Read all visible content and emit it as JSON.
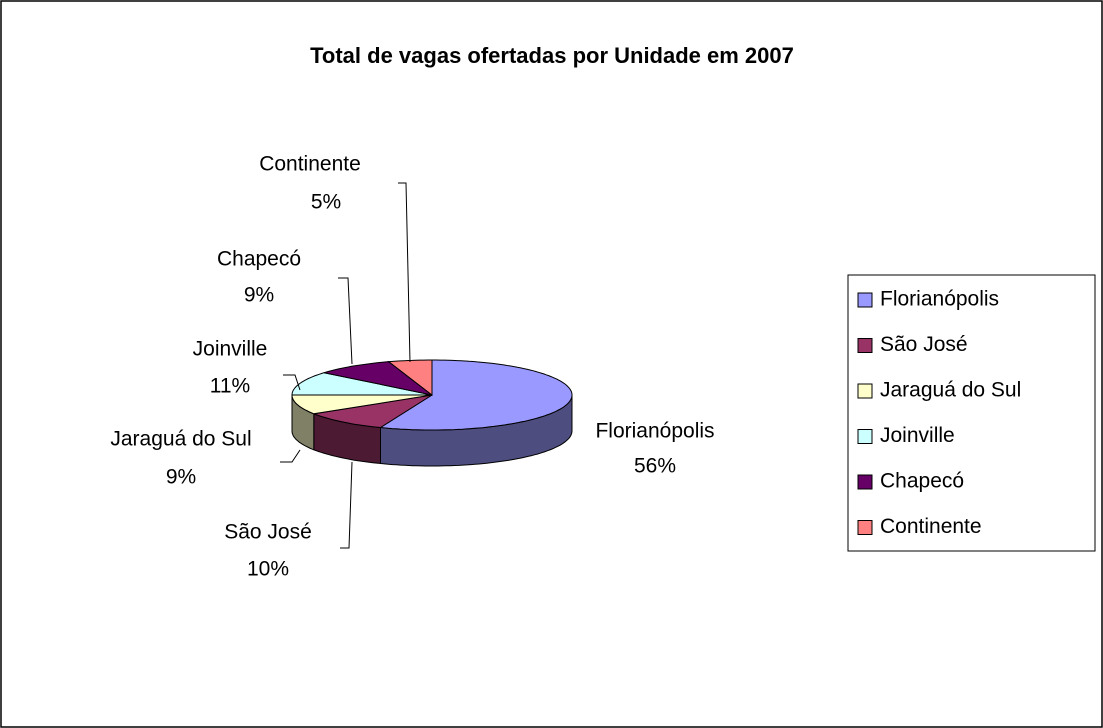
{
  "chart_data": {
    "type": "pie3d",
    "title": "Total de vagas ofertadas por Unidade  em 2007",
    "categories": [
      "Florianópolis",
      "São José",
      "Jaraguá do Sul",
      "Joinville",
      "Chapecó",
      "Continente"
    ],
    "values": [
      56,
      10,
      9,
      11,
      9,
      5
    ],
    "value_labels": [
      "56%",
      "10%",
      "9%",
      "11%",
      "9%",
      "5%"
    ],
    "colors": [
      "#9999ff",
      "#993366",
      "#ffffcc",
      "#ccffff",
      "#660066",
      "#ff8080"
    ],
    "legend": "right"
  }
}
